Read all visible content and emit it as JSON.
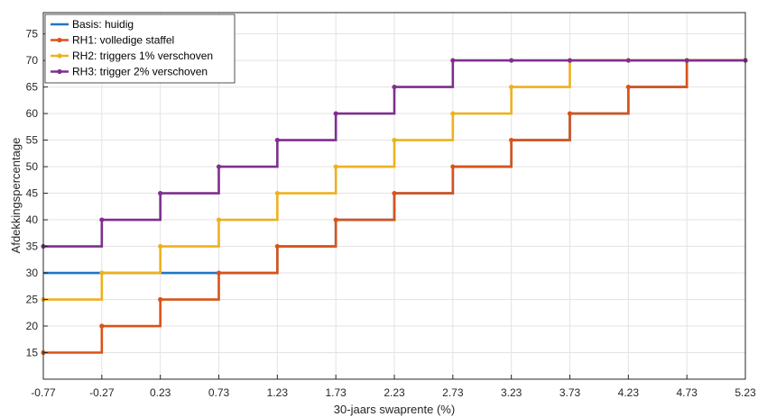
{
  "chart_data": {
    "type": "line",
    "step": true,
    "title": "",
    "xlabel": "30-jaars swaprente (%)",
    "ylabel": "Afdekkingspercentage",
    "x_ticks": [
      "-0.77",
      "-0.27",
      "0.23",
      "0.73",
      "1.23",
      "1.73",
      "2.23",
      "2.73",
      "3.23",
      "3.73",
      "4.23",
      "4.73",
      "5.23"
    ],
    "y_ticks": [
      "15",
      "20",
      "25",
      "30",
      "35",
      "40",
      "45",
      "50",
      "55",
      "60",
      "65",
      "70",
      "75"
    ],
    "xlim": [
      -0.77,
      5.23
    ],
    "ylim": [
      10,
      79
    ],
    "grid": true,
    "legend_position": "top-left",
    "series": [
      {
        "name": "Basis: huidig",
        "color": "#1f77c4",
        "markers": false,
        "x": [
          -0.77,
          1.23,
          1.73,
          2.23,
          2.73,
          3.23,
          3.73,
          4.23,
          4.73,
          5.23
        ],
        "y": [
          30,
          35,
          40,
          45,
          50,
          55,
          60,
          65,
          70,
          70
        ]
      },
      {
        "name": "RH1: volledige staffel",
        "color": "#d95319",
        "markers": true,
        "x": [
          -0.77,
          -0.27,
          0.23,
          0.73,
          1.23,
          1.73,
          2.23,
          2.73,
          3.23,
          3.73,
          4.23,
          4.73,
          5.23
        ],
        "y": [
          15,
          20,
          25,
          30,
          35,
          40,
          45,
          50,
          55,
          60,
          65,
          70,
          70
        ]
      },
      {
        "name": "RH2: triggers 1% verschoven",
        "color": "#edb120",
        "markers": true,
        "x": [
          -0.77,
          -0.27,
          0.23,
          0.73,
          1.23,
          1.73,
          2.23,
          2.73,
          3.23,
          3.73,
          4.23,
          4.73,
          5.23
        ],
        "y": [
          25,
          30,
          35,
          40,
          45,
          50,
          55,
          60,
          65,
          70,
          70,
          70,
          70
        ]
      },
      {
        "name": "RH3: trigger 2% verschoven",
        "color": "#7e2f8e",
        "markers": true,
        "x": [
          -0.77,
          -0.27,
          0.23,
          0.73,
          1.23,
          1.73,
          2.23,
          2.73,
          3.23,
          3.73,
          4.23,
          4.73,
          5.23
        ],
        "y": [
          35,
          40,
          45,
          50,
          55,
          60,
          65,
          70,
          70,
          70,
          70,
          70,
          70
        ]
      }
    ]
  }
}
